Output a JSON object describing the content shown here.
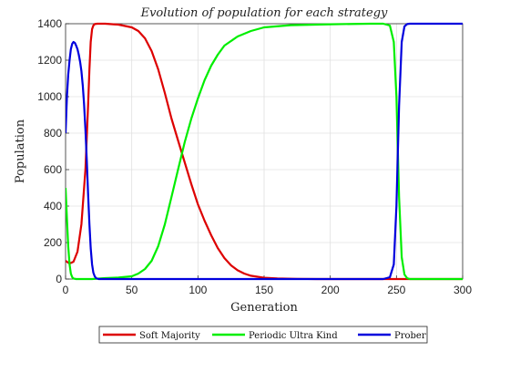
{
  "chart_data": {
    "type": "line",
    "title": "Evolution of population for each strategy",
    "xlabel": "Generation",
    "ylabel": "Population",
    "xlim": [
      0,
      300
    ],
    "ylim": [
      0,
      1400
    ],
    "xticks": [
      0,
      50,
      100,
      150,
      200,
      250,
      300
    ],
    "yticks": [
      0,
      200,
      400,
      600,
      800,
      1000,
      1200,
      1400
    ],
    "grid": true,
    "legend": {
      "placement": "bottom-outside",
      "orientation": "horizontal"
    },
    "series": [
      {
        "name": "Soft Majority",
        "color": "#dd0000",
        "x": [
          0,
          3,
          6,
          9,
          12,
          15,
          17,
          18,
          19,
          20,
          21,
          22,
          24,
          26,
          30,
          40,
          50,
          55,
          60,
          65,
          70,
          75,
          80,
          85,
          90,
          95,
          100,
          105,
          110,
          115,
          120,
          125,
          130,
          135,
          140,
          150,
          160,
          175,
          190,
          250,
          300
        ],
        "values": [
          100,
          85,
          95,
          150,
          300,
          600,
          950,
          1150,
          1300,
          1370,
          1390,
          1398,
          1400,
          1400,
          1400,
          1395,
          1380,
          1360,
          1320,
          1250,
          1150,
          1020,
          880,
          760,
          640,
          520,
          410,
          320,
          240,
          170,
          115,
          75,
          48,
          30,
          18,
          7,
          3,
          1,
          0,
          0,
          0
        ]
      },
      {
        "name": "Periodic Ultra Kind",
        "color": "#00ee00",
        "x": [
          0,
          1,
          2,
          3,
          4,
          5,
          6,
          8,
          10,
          15,
          20,
          30,
          40,
          50,
          55,
          60,
          65,
          70,
          75,
          80,
          85,
          90,
          95,
          100,
          105,
          110,
          115,
          120,
          130,
          140,
          150,
          170,
          200,
          230,
          240,
          245,
          248,
          250,
          252,
          254,
          256,
          258,
          260,
          270,
          300
        ],
        "values": [
          500,
          330,
          180,
          80,
          30,
          10,
          3,
          0,
          0,
          0,
          0,
          5,
          8,
          15,
          30,
          55,
          100,
          180,
          300,
          450,
          600,
          750,
          880,
          990,
          1090,
          1170,
          1230,
          1280,
          1330,
          1360,
          1380,
          1392,
          1397,
          1400,
          1400,
          1390,
          1300,
          1000,
          450,
          120,
          25,
          5,
          0,
          0,
          0
        ]
      },
      {
        "name": "Prober",
        "color": "#0000dd",
        "x": [
          0,
          1,
          2,
          3,
          4,
          5,
          6,
          7,
          8,
          9,
          10,
          11,
          12,
          13,
          14,
          15,
          16,
          17,
          18,
          19,
          20,
          21,
          22,
          23,
          25,
          30,
          100,
          200,
          240,
          245,
          248,
          250,
          252,
          254,
          256,
          258,
          260,
          270,
          300
        ],
        "values": [
          800,
          1000,
          1120,
          1200,
          1260,
          1290,
          1300,
          1295,
          1280,
          1260,
          1230,
          1190,
          1140,
          1060,
          960,
          820,
          650,
          470,
          300,
          170,
          80,
          35,
          15,
          5,
          0,
          0,
          0,
          0,
          0,
          10,
          80,
          400,
          950,
          1300,
          1385,
          1398,
          1400,
          1400,
          1400
        ]
      }
    ]
  }
}
